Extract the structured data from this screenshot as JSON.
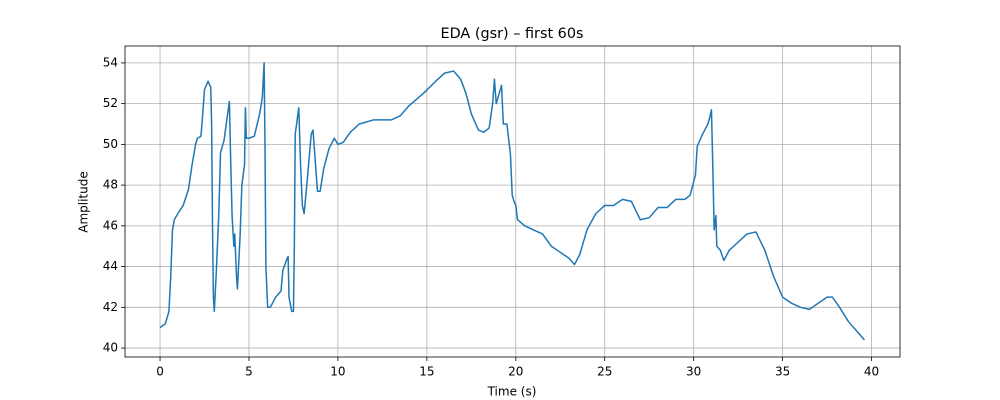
{
  "chart_data": {
    "type": "line",
    "title": "EDA (gsr) – first 60s",
    "x_label": "Time (s)",
    "y_label": "Amplitude",
    "color": "#1f77b4",
    "grid": true,
    "xlim": [
      -1.97,
      41.6
    ],
    "ylim": [
      39.56,
      54.83
    ],
    "xticks": [
      0,
      5,
      10,
      15,
      20,
      25,
      30,
      35,
      40
    ],
    "yticks": [
      40,
      42,
      44,
      46,
      48,
      50,
      52,
      54
    ],
    "x": [
      0,
      0.3,
      0.5,
      0.6,
      0.7,
      0.8,
      1.0,
      1.3,
      1.6,
      1.8,
      2.0,
      2.1,
      2.3,
      2.4,
      2.5,
      2.7,
      2.85,
      2.9,
      2.95,
      3.0,
      3.05,
      3.15,
      3.3,
      3.4,
      3.6,
      3.8,
      3.9,
      3.95,
      4.05,
      4.15,
      4.2,
      4.3,
      4.35,
      4.5,
      4.6,
      4.75,
      4.8,
      4.85,
      5.0,
      5.3,
      5.6,
      5.75,
      5.85,
      5.9,
      5.95,
      6.05,
      6.2,
      6.5,
      6.8,
      6.9,
      7.1,
      7.2,
      7.25,
      7.4,
      7.5,
      7.55,
      7.6,
      7.8,
      7.9,
      8.0,
      8.1,
      8.25,
      8.5,
      8.6,
      8.7,
      8.85,
      9.0,
      9.2,
      9.5,
      9.8,
      10.0,
      10.3,
      10.7,
      11.2,
      12,
      13,
      13.5,
      14,
      14.8,
      15.5,
      16,
      16.5,
      16.9,
      17.2,
      17.5,
      17.9,
      18.2,
      18.5,
      18.7,
      18.8,
      18.9,
      19.0,
      19.2,
      19.3,
      19.5,
      19.7,
      19.8,
      19.9,
      20.0,
      20.1,
      20.5,
      21,
      21.5,
      22,
      22.5,
      23,
      23.3,
      23.6,
      24,
      24.5,
      25,
      25.5,
      26,
      26.5,
      27,
      27.5,
      28,
      28.5,
      29,
      29.5,
      29.8,
      30.1,
      30.2,
      30.5,
      30.8,
      30.9,
      31.0,
      31.1,
      31.15,
      31.25,
      31.3,
      31.5,
      31.7,
      32,
      32.5,
      33,
      33.5,
      34,
      34.5,
      35,
      35.5,
      36,
      36.5,
      37,
      37.5,
      37.8,
      38.2,
      38.7,
      39.2,
      39.6
    ],
    "values": [
      41.0,
      41.2,
      41.8,
      43.5,
      45.8,
      46.3,
      46.6,
      47.0,
      47.8,
      49.0,
      50.0,
      50.3,
      50.4,
      51.5,
      52.7,
      53.1,
      52.8,
      51.0,
      46.0,
      42.5,
      41.8,
      43.5,
      46.5,
      49.6,
      50.2,
      51.5,
      52.1,
      50.0,
      46.5,
      45.0,
      45.6,
      43.5,
      42.9,
      45.5,
      48.0,
      49.0,
      51.8,
      50.3,
      50.3,
      50.4,
      51.5,
      52.3,
      54.0,
      50.0,
      44.0,
      42.0,
      42.0,
      42.5,
      42.8,
      43.8,
      44.3,
      44.5,
      42.5,
      41.8,
      41.8,
      45.0,
      50.5,
      51.8,
      49.0,
      47.0,
      46.6,
      48.0,
      50.5,
      50.7,
      49.5,
      47.7,
      47.7,
      48.8,
      49.8,
      50.3,
      50.0,
      50.1,
      50.6,
      51.0,
      51.2,
      51.2,
      51.4,
      51.9,
      52.5,
      53.1,
      53.5,
      53.6,
      53.2,
      52.5,
      51.5,
      50.7,
      50.6,
      50.8,
      52.0,
      53.2,
      52.0,
      52.3,
      52.9,
      51.0,
      51.0,
      49.5,
      47.5,
      47.2,
      47.0,
      46.3,
      46.0,
      45.8,
      45.6,
      45.0,
      44.7,
      44.4,
      44.1,
      44.6,
      45.8,
      46.6,
      47.0,
      47.0,
      47.3,
      47.2,
      46.3,
      46.4,
      46.9,
      46.9,
      47.3,
      47.3,
      47.5,
      48.5,
      49.9,
      50.5,
      51.0,
      51.3,
      51.7,
      48.0,
      45.8,
      46.5,
      45.0,
      44.8,
      44.3,
      44.8,
      45.2,
      45.6,
      45.7,
      44.8,
      43.5,
      42.5,
      42.2,
      42.0,
      41.9,
      42.2,
      42.5,
      42.5,
      42.0,
      41.3,
      40.8,
      40.4
    ]
  }
}
